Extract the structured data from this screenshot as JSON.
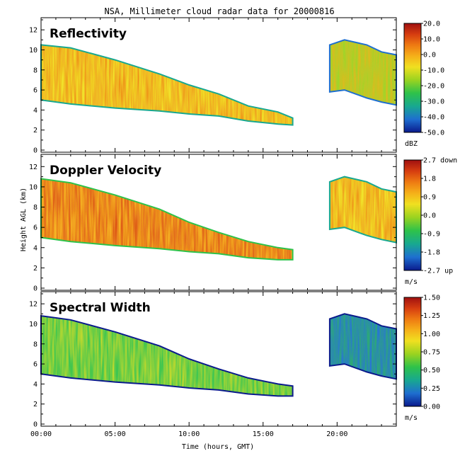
{
  "title": "NSA, Millimeter cloud radar data for 20000816",
  "xlabel": "Time (hours, GMT)",
  "ylabel": "Height AGL (km)",
  "x_tick_labels": [
    "00:00",
    "05:00",
    "10:00",
    "15:00",
    "20:00"
  ],
  "y_tick_labels": [
    "0",
    "2",
    "4",
    "6",
    "8",
    "10",
    "12"
  ],
  "colors": {
    "reflectivity": [
      "#0a1a8c",
      "#1e6fd0",
      "#18a890",
      "#2ec24a",
      "#9ad320",
      "#f0e020",
      "#f5b019",
      "#ee7a12",
      "#d63d10",
      "#a01010"
    ],
    "velocity": [
      "#0a1a8c",
      "#1e6fd0",
      "#18a890",
      "#2ec24a",
      "#9ad320",
      "#f0e020",
      "#f5b019",
      "#ee7a12",
      "#d63d10",
      "#a01010"
    ],
    "width": [
      "#0a1a8c",
      "#1e6fd0",
      "#18a890",
      "#2ec24a",
      "#9ad320",
      "#f0e020",
      "#f5b019",
      "#ee7a12",
      "#d63d10",
      "#a01010"
    ]
  },
  "chart_data": [
    {
      "type": "heatmap",
      "title": "Reflectivity",
      "ylim": [
        0,
        13
      ],
      "xlim": [
        0,
        24
      ],
      "colorbar": {
        "labels": [
          "20.0",
          "10.0",
          "0.0",
          "-10.0",
          "-20.0",
          "-30.0",
          "-40.0",
          "-50.0"
        ],
        "unit": "dBZ",
        "range": [
          -50,
          20
        ]
      },
      "cloud_layers": [
        {
          "x": [
            0,
            2,
            5,
            8,
            10,
            12,
            14,
            16,
            17
          ],
          "top": [
            10.5,
            10.2,
            9.0,
            7.6,
            6.5,
            5.6,
            4.4,
            3.8,
            3.2
          ],
          "base": [
            5.0,
            4.6,
            4.2,
            3.9,
            3.6,
            3.4,
            2.9,
            2.6,
            2.5
          ],
          "level": -10
        },
        {
          "x": [
            19.5,
            20.5,
            22,
            23,
            24
          ],
          "top": [
            10.5,
            11.0,
            10.5,
            9.8,
            9.5
          ],
          "base": [
            5.8,
            6.0,
            5.2,
            4.8,
            4.5
          ],
          "level": -20
        }
      ]
    },
    {
      "type": "heatmap",
      "title": "Doppler Velocity",
      "ylim": [
        0,
        13
      ],
      "xlim": [
        0,
        24
      ],
      "colorbar": {
        "labels": [
          "2.7 down",
          "1.8",
          "0.9",
          "0.0",
          "-0.9",
          "-1.8",
          "-2.7 up"
        ],
        "unit": "m/s",
        "range": [
          -2.7,
          2.7
        ]
      },
      "cloud_layers": [
        {
          "x": [
            0,
            2,
            5,
            8,
            10,
            12,
            14,
            16,
            17
          ],
          "top": [
            10.8,
            10.4,
            9.2,
            7.8,
            6.5,
            5.5,
            4.6,
            4.0,
            3.8
          ],
          "base": [
            5.0,
            4.6,
            4.2,
            3.9,
            3.6,
            3.4,
            3.0,
            2.8,
            2.8
          ],
          "level": 0.6
        },
        {
          "x": [
            19.5,
            20.5,
            22,
            23,
            24
          ],
          "top": [
            10.5,
            11.0,
            10.5,
            9.8,
            9.5
          ],
          "base": [
            5.8,
            6.0,
            5.2,
            4.8,
            4.5
          ],
          "level": 0.3
        }
      ]
    },
    {
      "type": "heatmap",
      "title": "Spectral Width",
      "ylim": [
        0,
        13
      ],
      "xlim": [
        0,
        24
      ],
      "colorbar": {
        "labels": [
          "1.50",
          "1.25",
          "1.00",
          "0.75",
          "0.50",
          "0.25",
          "0.00"
        ],
        "unit": "m/s",
        "range": [
          0,
          1.5
        ]
      },
      "cloud_layers": [
        {
          "x": [
            0,
            2,
            5,
            8,
            10,
            12,
            14,
            16,
            17
          ],
          "top": [
            10.8,
            10.4,
            9.2,
            7.8,
            6.5,
            5.5,
            4.6,
            4.0,
            3.8
          ],
          "base": [
            5.0,
            4.6,
            4.2,
            3.9,
            3.6,
            3.4,
            3.0,
            2.8,
            2.8
          ],
          "level": 0.45
        },
        {
          "x": [
            19.5,
            20.5,
            22,
            23,
            24
          ],
          "top": [
            10.5,
            11.0,
            10.5,
            9.8,
            9.5
          ],
          "base": [
            5.8,
            6.0,
            5.2,
            4.8,
            4.5
          ],
          "level": 0.2
        }
      ]
    }
  ]
}
